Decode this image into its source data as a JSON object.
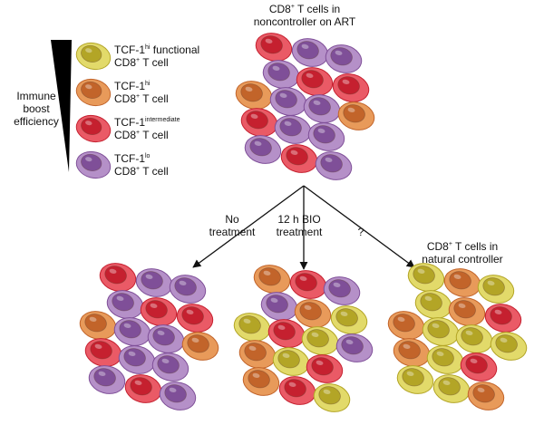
{
  "title": {
    "line1": {
      "base": "CD8",
      "sup": "+",
      "rest": " T cells in"
    },
    "line2": "noncontroller on ART"
  },
  "legend": {
    "label": [
      "Immune",
      "boost",
      "efficiency"
    ],
    "items": [
      {
        "line1": {
          "base": "TCF-1",
          "sup": "hi",
          "rest": " functional"
        },
        "line2": {
          "base": "CD8",
          "sup": "+",
          "rest": " T cell"
        }
      },
      {
        "line1": {
          "base": "TCF-1",
          "sup": "hi"
        },
        "line2": {
          "base": "CD8",
          "sup": "+",
          "rest": " T cell"
        }
      },
      {
        "line1": {
          "base": "TCF-1",
          "sup": "intermediate"
        },
        "line2": {
          "base": "CD8",
          "sup": "+",
          "rest": " T cell"
        }
      },
      {
        "line1": {
          "base": "TCF-1",
          "sup": "lo"
        },
        "line2": {
          "base": "CD8",
          "sup": "+",
          "rest": " T cell"
        }
      }
    ]
  },
  "arrows": [
    {
      "label": [
        "No",
        "treatment"
      ]
    },
    {
      "label": [
        "12 h BIO",
        "treatment"
      ]
    },
    {
      "label": [
        "?"
      ]
    }
  ],
  "natural_controller": {
    "line1": {
      "base": "CD8",
      "sup": "+",
      "rest": " T cells in"
    },
    "line2": "natural controller"
  }
}
